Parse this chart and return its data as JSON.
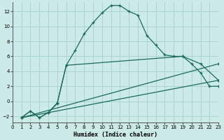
{
  "xlabel": "Humidex (Indice chaleur)",
  "background_color": "#cceae8",
  "grid_color": "#aad4d0",
  "line_color": "#1a6b5a",
  "xlim": [
    0,
    23
  ],
  "ylim": [
    -2.8,
    13.2
  ],
  "xticks": [
    0,
    1,
    2,
    3,
    4,
    5,
    6,
    7,
    8,
    9,
    10,
    11,
    12,
    13,
    14,
    15,
    16,
    17,
    18,
    19,
    20,
    21,
    22,
    23
  ],
  "yticks": [
    -2,
    0,
    2,
    4,
    6,
    8,
    10,
    12
  ],
  "line1_x": [
    1,
    2,
    3,
    4,
    5,
    6,
    7,
    8,
    9,
    10,
    11,
    12,
    13,
    14,
    15,
    16,
    17,
    18,
    19,
    20,
    21,
    22,
    23
  ],
  "line1_y": [
    -2.2,
    -1.3,
    -2.2,
    -1.5,
    -0.2,
    4.8,
    6.8,
    9.0,
    10.5,
    11.8,
    12.8,
    12.8,
    12.0,
    11.5,
    8.8,
    7.5,
    6.2,
    6.0,
    6.0,
    5.0,
    3.8,
    2.0,
    2.0
  ],
  "line2_x": [
    1,
    2,
    3,
    4,
    5,
    6,
    19,
    21,
    23
  ],
  "line2_y": [
    -2.2,
    -1.3,
    -2.2,
    -1.5,
    -0.3,
    4.8,
    6.0,
    5.0,
    2.8
  ],
  "line3_x": [
    1,
    23
  ],
  "line3_y": [
    -2.2,
    2.8
  ],
  "line4_x": [
    1,
    23
  ],
  "line4_y": [
    -2.2,
    5.0
  ]
}
